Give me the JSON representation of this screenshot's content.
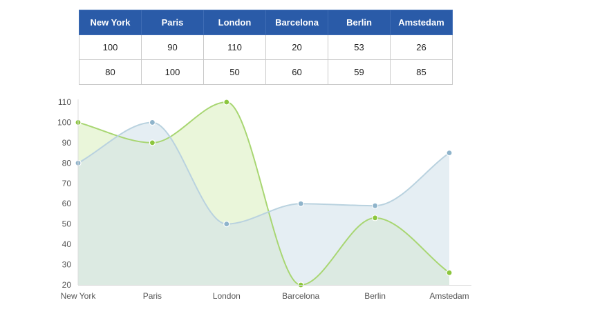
{
  "table": {
    "header": [
      "New York",
      "Paris",
      "London",
      "Barcelona",
      "Berlin",
      "Amstedam"
    ],
    "rows": [
      [
        "100",
        "90",
        "110",
        "20",
        "53",
        "26"
      ],
      [
        "80",
        "100",
        "50",
        "60",
        "59",
        "85"
      ]
    ]
  },
  "chart_data": {
    "type": "area",
    "categories": [
      "New York",
      "Paris",
      "London",
      "Barcelona",
      "Berlin",
      "Amstedam"
    ],
    "series": [
      {
        "values": [
          100,
          90,
          110,
          20,
          53,
          26
        ],
        "line_color": "#a8d672",
        "fill_color": "#d8eebc",
        "marker_color": "#8cc63e"
      },
      {
        "values": [
          80,
          100,
          50,
          60,
          59,
          85
        ],
        "line_color": "#b9d2df",
        "fill_color": "#d0e0ea",
        "marker_color": "#8fb4cb"
      }
    ],
    "ylim": [
      20,
      110
    ],
    "yticks": [
      20,
      30,
      40,
      50,
      60,
      70,
      80,
      90,
      100,
      110
    ],
    "smooth": true,
    "grid": false
  }
}
